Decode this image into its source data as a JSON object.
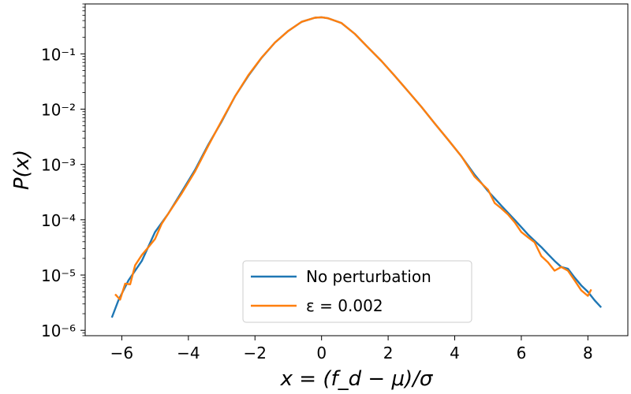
{
  "chart_data": {
    "type": "line",
    "xlabel": "x = (f_d − μ)/σ",
    "ylabel": "P(x)",
    "xlim": [
      -7.1,
      9.2
    ],
    "ylim": [
      8e-07,
      0.8
    ],
    "yscale": "log",
    "grid": false,
    "legend_position": "lower-center",
    "x_ticks": [
      -6,
      -4,
      -2,
      0,
      2,
      4,
      6,
      8
    ],
    "x_tick_labels": [
      "−6",
      "−4",
      "−2",
      "0",
      "2",
      "4",
      "6",
      "8"
    ],
    "y_ticks": [
      1e-06,
      1e-05,
      0.0001,
      0.001,
      0.01,
      0.1
    ],
    "y_tick_labels": [
      "10⁻⁶",
      "10⁻⁵",
      "10⁻⁴",
      "10⁻³",
      "10⁻²",
      "10⁻¹"
    ],
    "series": [
      {
        "name": "No perturbation",
        "color": "#1f77b4",
        "x": [
          -6.3,
          -6.1,
          -5.8,
          -5.4,
          -5.0,
          -4.6,
          -4.2,
          -3.8,
          -3.4,
          -3.0,
          -2.6,
          -2.2,
          -1.8,
          -1.4,
          -1.0,
          -0.6,
          -0.2,
          0.0,
          0.2,
          0.6,
          1.0,
          1.4,
          1.8,
          2.2,
          2.6,
          3.0,
          3.4,
          3.8,
          4.2,
          4.6,
          5.0,
          5.4,
          5.8,
          6.2,
          6.6,
          6.8,
          7.0,
          7.2,
          7.4,
          7.6,
          7.8,
          8.0,
          8.2,
          8.4
        ],
        "y": [
          1.7e-06,
          3.5e-06,
          8e-06,
          1.8e-05,
          6e-05,
          0.00013,
          0.00032,
          0.0008,
          0.0023,
          0.006,
          0.017,
          0.04,
          0.085,
          0.16,
          0.26,
          0.38,
          0.45,
          0.46,
          0.44,
          0.36,
          0.23,
          0.13,
          0.074,
          0.04,
          0.021,
          0.011,
          0.0055,
          0.0028,
          0.0014,
          0.00065,
          0.00033,
          0.00018,
          0.0001,
          5.4e-05,
          3.2e-05,
          2.4e-05,
          1.8e-05,
          1.4e-05,
          1.3e-05,
          9e-06,
          6.5e-06,
          5e-06,
          3.5e-06,
          2.6e-06
        ]
      },
      {
        "name": "ε = 0.002",
        "color": "#ff7f0e",
        "x": [
          -6.2,
          -6.05,
          -5.9,
          -5.75,
          -5.6,
          -5.4,
          -5.2,
          -5.0,
          -4.8,
          -4.6,
          -4.2,
          -3.8,
          -3.4,
          -3.0,
          -2.6,
          -2.2,
          -1.8,
          -1.4,
          -1.0,
          -0.6,
          -0.2,
          0.0,
          0.2,
          0.6,
          1.0,
          1.4,
          1.8,
          2.2,
          2.6,
          3.0,
          3.4,
          3.8,
          4.2,
          4.6,
          5.0,
          5.2,
          5.4,
          5.6,
          5.8,
          6.0,
          6.2,
          6.4,
          6.6,
          6.8,
          7.0,
          7.2,
          7.4,
          7.6,
          7.8,
          8.0,
          8.1
        ],
        "y": [
          4.5e-06,
          3.6e-06,
          7e-06,
          6.8e-06,
          1.5e-05,
          2.3e-05,
          3.2e-05,
          4.5e-05,
          8.5e-05,
          0.00013,
          0.0003,
          0.00075,
          0.0022,
          0.0062,
          0.017,
          0.041,
          0.086,
          0.16,
          0.26,
          0.38,
          0.45,
          0.46,
          0.44,
          0.36,
          0.23,
          0.13,
          0.074,
          0.04,
          0.021,
          0.011,
          0.0055,
          0.0028,
          0.0014,
          0.0006,
          0.00035,
          0.0002,
          0.00016,
          0.000125,
          9e-05,
          6e-05,
          4.8e-05,
          3.9e-05,
          2.2e-05,
          1.7e-05,
          1.2e-05,
          1.4e-05,
          1.2e-05,
          8e-06,
          5.3e-06,
          4.2e-06,
          5.5e-06
        ]
      }
    ]
  }
}
